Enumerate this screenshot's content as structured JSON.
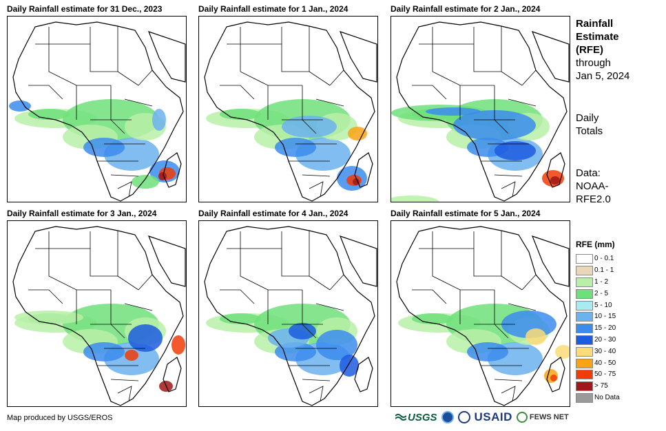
{
  "panels": [
    {
      "title": "Daily Rainfall estimate for 31 Dec., 2023",
      "rain_profile": "p0"
    },
    {
      "title": "Daily Rainfall estimate for 1 Jan., 2024",
      "rain_profile": "p1"
    },
    {
      "title": "Daily Rainfall estimate for 2 Jan., 2024",
      "rain_profile": "p2"
    },
    {
      "title": "Daily Rainfall estimate for 3 Jan., 2024",
      "rain_profile": "p3"
    },
    {
      "title": "Daily Rainfall estimate for 4 Jan., 2024",
      "rain_profile": "p4"
    },
    {
      "title": "Daily Rainfall estimate for 5 Jan., 2024",
      "rain_profile": "p5"
    }
  ],
  "sidebar": {
    "title_line1": "Rainfall",
    "title_line2": "Estimate",
    "title_line3": "(RFE)",
    "through_line1": "through",
    "through_line2": "Jan 5, 2024",
    "totals_line1": "Daily",
    "totals_line2": "Totals",
    "data_line1": "Data:",
    "data_line2": "NOAA-",
    "data_line3": "RFE2.0"
  },
  "legend": {
    "title": "RFE (mm)",
    "items": [
      {
        "label": "0 - 0.1",
        "color": "#ffffff"
      },
      {
        "label": "0.1 - 1",
        "color": "#e8d8b8"
      },
      {
        "label": "1 - 2",
        "color": "#b8f0a8"
      },
      {
        "label": "2 - 5",
        "color": "#6ee07a"
      },
      {
        "label": "5 - 10",
        "color": "#a8ecf2"
      },
      {
        "label": "10 - 15",
        "color": "#6cb2ee"
      },
      {
        "label": "15 - 20",
        "color": "#3c8cee"
      },
      {
        "label": "20 - 30",
        "color": "#1c5ce0"
      },
      {
        "label": "30 - 40",
        "color": "#fcdc78"
      },
      {
        "label": "40 - 50",
        "color": "#f8a414"
      },
      {
        "label": "50 - 75",
        "color": "#f03c08"
      },
      {
        "label": "> 75",
        "color": "#a01818"
      },
      {
        "label": "No Data",
        "color": "#9a9a9a"
      }
    ]
  },
  "footer": {
    "credit": "Map produced by USGS/EROS",
    "logo_usgs": "USGS",
    "logo_usaid": "USAID",
    "logo_fews": "FEWS NET"
  },
  "colors": {
    "border": "#000000",
    "coast": "#000000"
  }
}
